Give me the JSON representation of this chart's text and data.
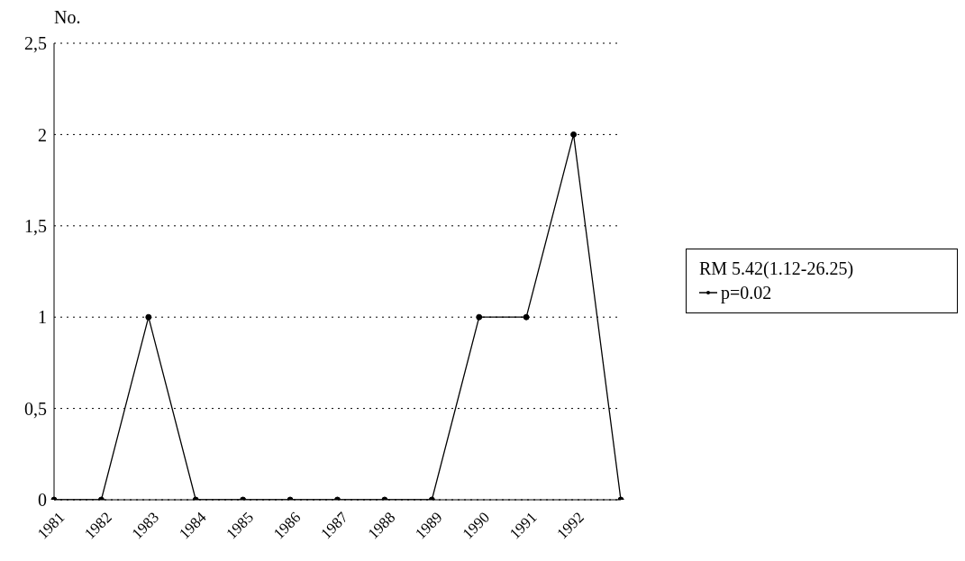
{
  "chart_data": {
    "type": "line",
    "ylabel": "No.",
    "legend_title": "RM 5.42(1.12-26.25)",
    "categories": [
      "1981",
      "1982",
      "1983",
      "1984",
      "1985",
      "1986",
      "1987",
      "1988",
      "1989",
      "1990",
      "1991",
      "1992",
      null
    ],
    "series": [
      {
        "name": "p=0.02",
        "color": "#000000",
        "values": [
          0,
          0,
          1,
          0,
          0,
          0,
          0,
          0,
          0,
          1,
          1,
          2,
          0
        ]
      }
    ],
    "ylim": [
      0,
      2.5
    ],
    "yticks": [
      0,
      {
        "value": 0.5,
        "label": "0,5"
      },
      1,
      {
        "value": 1.5,
        "label": "1,5"
      },
      2,
      {
        "value": 2.5,
        "label": "2,5"
      }
    ],
    "grid": "y",
    "legend": "right",
    "marker": "circle",
    "line_style": "solid"
  }
}
